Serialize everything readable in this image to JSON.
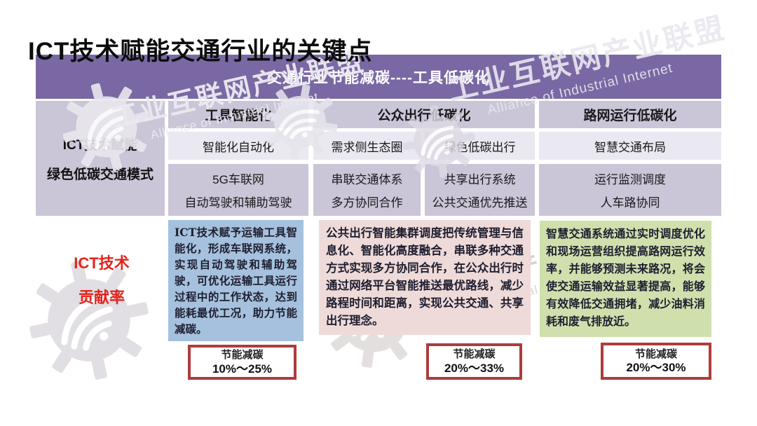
{
  "title": "ICT技术赋能交通行业的关键点",
  "banner": "交通行业节能减碳----工具低碳化",
  "watermark": {
    "cn": "工业互联网产业联盟",
    "en": "Alliance of Industrial Internet"
  },
  "left_cell": {
    "line1": "ICT技术赋能",
    "line2": "绿色低碳交通模式"
  },
  "contribution": {
    "line1": "ICT技术",
    "line2": "贡献率"
  },
  "table": {
    "headers": {
      "tools": "工具智能化",
      "public": "公众出行低碳化",
      "road": "路网运行低碳化"
    },
    "row1": {
      "tools": "智能化自动化",
      "public_a": "需求侧生态圈",
      "public_b": "绿色低碳出行",
      "road": "智慧交通布局"
    },
    "row2": {
      "tools": [
        "5G车联网",
        "自动驾驶和辅助驾驶"
      ],
      "public_a": [
        "串联交通体系",
        "多方协同合作"
      ],
      "public_b": [
        "共享出行系统",
        "公共交通优先推送"
      ],
      "road": [
        "运行监测调度",
        "人车路协同"
      ]
    }
  },
  "details": {
    "tools": "ICT技术赋予运输工具智能化，形成车联网系统，实现自动驾驶和辅助驾驶，可优化运输工具运行过程中的工作状态，达到能耗最优工况，助力节能减碳。",
    "public": "公共出行智能集群调度把传统管理与信息化、智能化高度融合，串联多种交通方式实现多方协同合作，在公众出行时通过网络平台智能推送最优路线，减少路程时间和距离，实现公共交通、共享出行理念。",
    "road": "智慧交通系统通过实时调度优化和现场运营组织提高路网运行效率，并能够预测未来路况，将会使交通运输效益显著提高，能够有效降低交通拥堵，减少油料消耗和废气排放近。"
  },
  "savings": [
    {
      "label": "节能减碳",
      "range": "10%～25%"
    },
    {
      "label": "节能减碳",
      "range": "20%～33%"
    },
    {
      "label": "节能减碳",
      "range": "20%～30%"
    }
  ],
  "colors": {
    "banner_purple": "#7a68a4",
    "cell_lavender": "#cbc5d8",
    "row_light": "#eae8f0",
    "box_blue": "#a5c1dd",
    "box_pink": "#eedad8",
    "box_green": "#cfe0ad",
    "accent_red": "#e3241c",
    "saving_border": "#ad3c3c"
  }
}
